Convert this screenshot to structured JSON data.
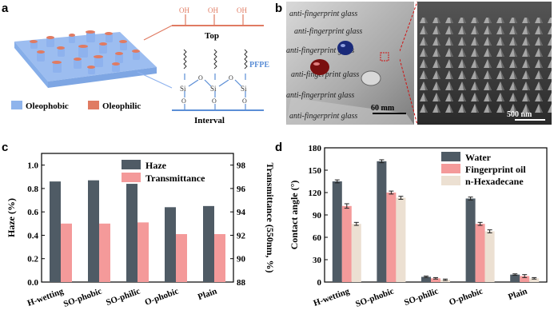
{
  "panels": {
    "a": "a",
    "b": "b",
    "c": "c",
    "d": "d"
  },
  "schematic": {
    "top_label": "Top",
    "interval_label": "Interval",
    "pfpe_label": "PFPE",
    "oh_labels": [
      "OH",
      "OH",
      "OH"
    ],
    "si_labels": [
      "Si",
      "Si",
      "Si"
    ],
    "o_labels": [
      "O",
      "O",
      "O",
      "O",
      "O",
      "O"
    ],
    "legend": [
      {
        "label": "Oleophobic",
        "color": "#8fb4ec"
      },
      {
        "label": "Oleophilic",
        "color": "#e07b62"
      }
    ]
  },
  "photo": {
    "glass_text": "anti-fingerprint glass",
    "scale_bar": "60 mm",
    "sem_scale_bar": "500 nm"
  },
  "chart_data": [
    {
      "panel": "c",
      "type": "bar",
      "categories": [
        "H-wetting",
        "SO-phobic",
        "SO-philic",
        "O-phobic",
        "Plain"
      ],
      "series": [
        {
          "name": "Haze",
          "axis": "left",
          "color": "#4f5b65",
          "values": [
            0.86,
            0.87,
            0.84,
            0.64,
            0.65
          ]
        },
        {
          "name": "Transmittance",
          "axis": "right",
          "color": "#f49a9a",
          "values": [
            93.0,
            93.0,
            93.1,
            92.1,
            92.1
          ]
        }
      ],
      "ylabel": "Haze (%)",
      "ylim": [
        0,
        1.1
      ],
      "yticks": [
        "0.0",
        "0.2",
        "0.4",
        "0.6",
        "0.8",
        "1.0"
      ],
      "y2label": "Transmittance (550nm, %)",
      "y2lim": [
        88,
        99
      ],
      "y2ticks": [
        "88",
        "90",
        "92",
        "94",
        "96",
        "98"
      ],
      "legend_position": "top-center"
    },
    {
      "panel": "d",
      "type": "bar",
      "categories": [
        "H-wetting",
        "SO-phobic",
        "SO-philic",
        "O-phobic",
        "Plain"
      ],
      "series": [
        {
          "name": "Water",
          "color": "#4f5b65",
          "values": [
            135,
            162,
            7,
            112,
            10
          ],
          "errors": [
            2,
            2,
            1,
            2,
            1
          ]
        },
        {
          "name": "Fingerprint oil",
          "color": "#f49a9a",
          "values": [
            102,
            120,
            5,
            78,
            8
          ],
          "errors": [
            3,
            2,
            1,
            2,
            2
          ]
        },
        {
          "name": "n-Hexadecane",
          "color": "#ece0d2",
          "values": [
            78,
            113,
            3,
            68,
            5
          ],
          "errors": [
            2,
            2,
            1,
            2,
            1
          ]
        }
      ],
      "ylabel": "Contact angle (°)",
      "ylim": [
        0,
        180
      ],
      "yticks": [
        "0",
        "30",
        "60",
        "90",
        "120",
        "150",
        "180"
      ],
      "legend_position": "top-right"
    }
  ]
}
